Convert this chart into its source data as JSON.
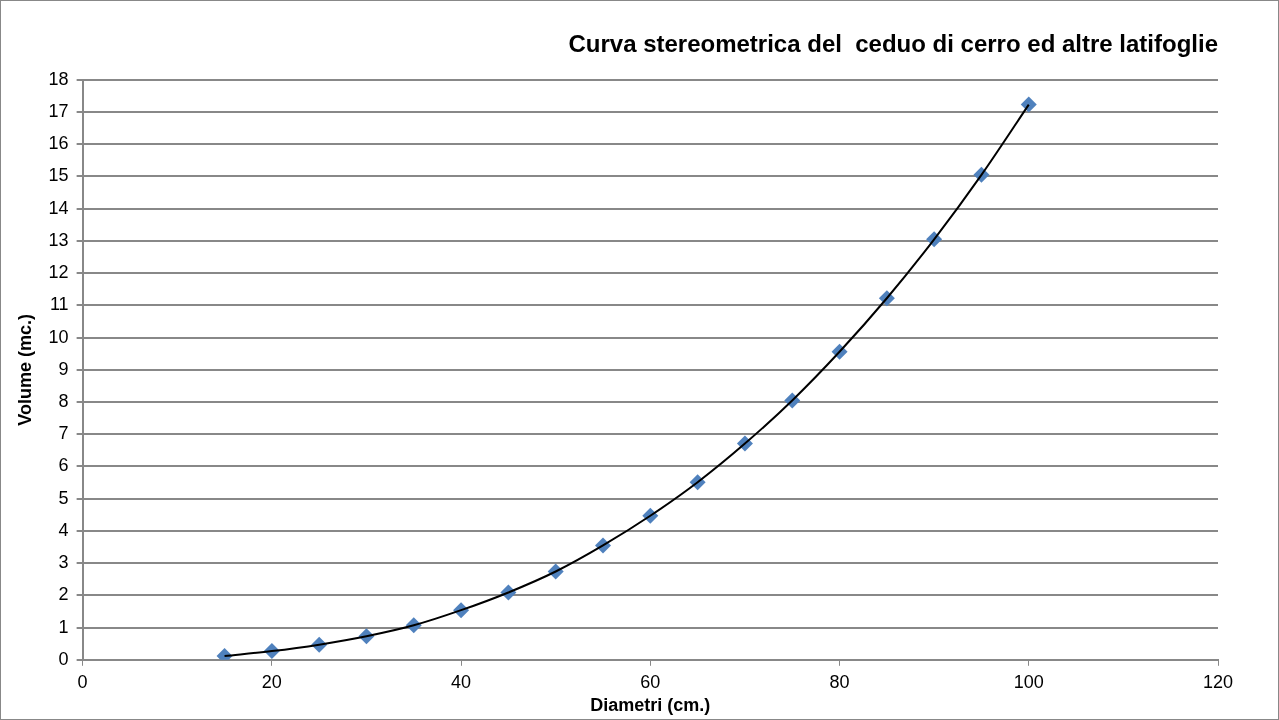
{
  "chart_data": {
    "type": "scatter",
    "title": "Curva stereometrica del  ceduo di cerro ed altre latifoglie",
    "xlabel": "Diametri (cm.)",
    "ylabel": "Volume (mc.)",
    "x": [
      15,
      20,
      25,
      30,
      35,
      40,
      45,
      50,
      55,
      60,
      65,
      70,
      75,
      80,
      85,
      90,
      95,
      100
    ],
    "series": [
      {
        "type": "scatter",
        "color": "#4f81bd",
        "marker": "diamond",
        "values": [
          0.12,
          0.27,
          0.47,
          0.73,
          1.07,
          1.54,
          2.09,
          2.74,
          3.55,
          4.47,
          5.51,
          6.71,
          8.05,
          9.56,
          11.22,
          13.05,
          15.05,
          17.23
        ]
      },
      {
        "type": "line",
        "color": "#000000",
        "marker": "none",
        "line_style": "solid",
        "values": [
          0.12,
          0.27,
          0.47,
          0.73,
          1.07,
          1.54,
          2.09,
          2.74,
          3.55,
          4.47,
          5.51,
          6.71,
          8.05,
          9.56,
          11.22,
          13.05,
          15.05,
          17.23
        ]
      }
    ],
    "xlim": [
      0,
      120
    ],
    "xticks": [
      0,
      20,
      40,
      60,
      80,
      100,
      120
    ],
    "ylim": [
      0,
      18
    ],
    "yticks": [
      0,
      1,
      2,
      3,
      4,
      5,
      6,
      7,
      8,
      9,
      10,
      11,
      12,
      13,
      14,
      15,
      16,
      17,
      18
    ],
    "grid": "y",
    "legend": false
  }
}
